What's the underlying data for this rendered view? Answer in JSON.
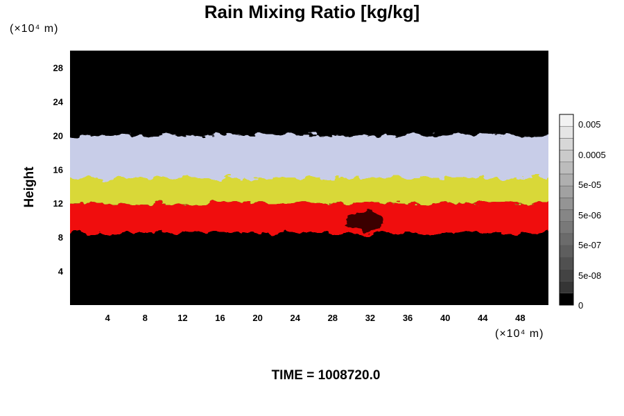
{
  "chart_data": {
    "type": "heatmap",
    "title": "Rain Mixing Ratio [kg/kg]",
    "ylabel": "Height",
    "y_unit": "(×10⁴ m)",
    "x_unit": "(×10⁴ m)",
    "time_label": "TIME = 1008720.0",
    "xlim": [
      0,
      51
    ],
    "ylim": [
      0,
      30
    ],
    "x_ticks": [
      4,
      8,
      12,
      16,
      20,
      24,
      28,
      32,
      36,
      40,
      44,
      48
    ],
    "y_ticks": [
      4,
      8,
      12,
      16,
      20,
      24,
      28
    ],
    "bands": [
      {
        "name": "white-blue cloud top",
        "y_range": [
          15,
          20
        ],
        "color": "#c8cde8"
      },
      {
        "name": "yellow layer",
        "y_range": [
          12,
          16
        ],
        "color": "#d9d838"
      },
      {
        "name": "red layer",
        "y_range": [
          8.5,
          12
        ],
        "color": "#f01010"
      }
    ],
    "colorbar": {
      "tick_labels": [
        "0.005",
        "0.0005",
        "5e-05",
        "5e-06",
        "5e-07",
        "5e-08",
        "0"
      ],
      "levels": 16,
      "scale": "log",
      "colors": [
        "#000000",
        "#f2f2f2"
      ]
    }
  }
}
